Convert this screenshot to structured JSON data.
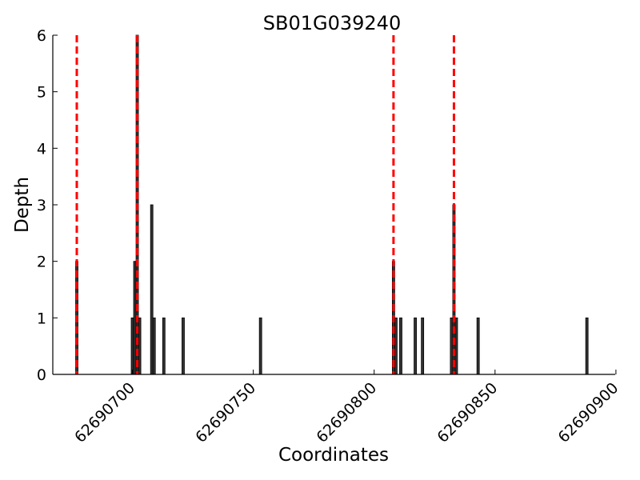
{
  "chart_data": {
    "type": "bar",
    "title": "SB01G039240",
    "xlabel": "Coordinates",
    "ylabel": "Depth",
    "xlim": [
      62690677,
      62690898
    ],
    "ylim": [
      0,
      6
    ],
    "xticks": [
      62690700,
      62690750,
      62690800,
      62690850,
      62690900
    ],
    "yticks": [
      0,
      1,
      2,
      3,
      4,
      5,
      6
    ],
    "grid": false,
    "bars": [
      {
        "x": 62690677,
        "depth": 2
      },
      {
        "x": 62690700,
        "depth": 1
      },
      {
        "x": 62690701,
        "depth": 2
      },
      {
        "x": 62690702,
        "depth": 6
      },
      {
        "x": 62690703,
        "depth": 1
      },
      {
        "x": 62690708,
        "depth": 3
      },
      {
        "x": 62690709,
        "depth": 1
      },
      {
        "x": 62690713,
        "depth": 1
      },
      {
        "x": 62690721,
        "depth": 1
      },
      {
        "x": 62690753,
        "depth": 1
      },
      {
        "x": 62690808,
        "depth": 2
      },
      {
        "x": 62690809,
        "depth": 1
      },
      {
        "x": 62690811,
        "depth": 1
      },
      {
        "x": 62690817,
        "depth": 1
      },
      {
        "x": 62690820,
        "depth": 1
      },
      {
        "x": 62690832,
        "depth": 1
      },
      {
        "x": 62690833,
        "depth": 3
      },
      {
        "x": 62690834,
        "depth": 1
      },
      {
        "x": 62690843,
        "depth": 1
      },
      {
        "x": 62690888,
        "depth": 1
      }
    ],
    "markers": [
      62690677,
      62690702,
      62690808,
      62690833
    ],
    "colors": {
      "bar_fill": "#333333",
      "bar_edge": "#000000",
      "marker": "#ff0000",
      "axis": "#000000"
    }
  }
}
